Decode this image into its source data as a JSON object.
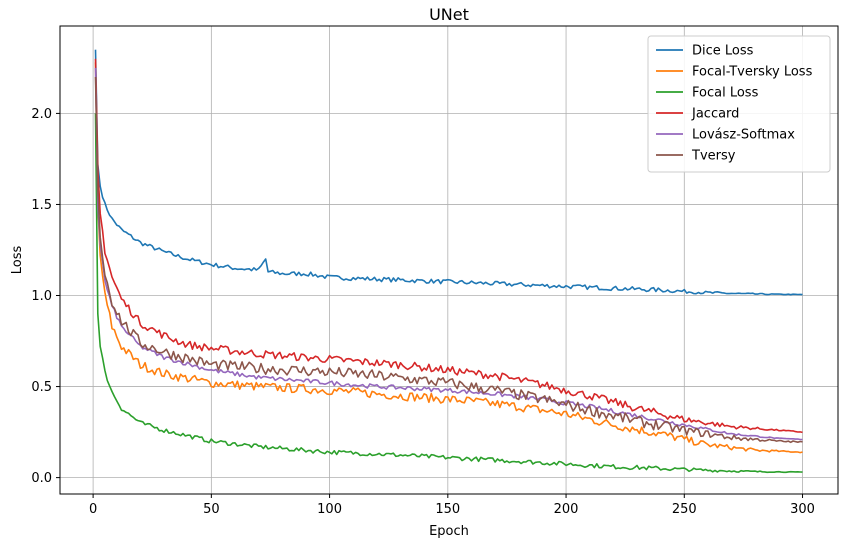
{
  "chart_data": {
    "type": "line",
    "title": "UNet",
    "xlabel": "Epoch",
    "ylabel": "Loss",
    "xlim": [
      -14,
      315
    ],
    "ylim": [
      -0.09,
      2.48
    ],
    "xticks": [
      0,
      50,
      100,
      150,
      200,
      250,
      300
    ],
    "yticks": [
      0.0,
      0.5,
      1.0,
      1.5,
      2.0
    ],
    "grid": true,
    "legend_position": "top-right",
    "series": [
      {
        "name": "Dice Loss",
        "color": "#1f77b4",
        "noise": 0.012,
        "points": [
          [
            1,
            2.35
          ],
          [
            2,
            1.72
          ],
          [
            3,
            1.6
          ],
          [
            5,
            1.5
          ],
          [
            8,
            1.42
          ],
          [
            12,
            1.36
          ],
          [
            20,
            1.29
          ],
          [
            30,
            1.24
          ],
          [
            40,
            1.2
          ],
          [
            50,
            1.17
          ],
          [
            60,
            1.15
          ],
          [
            70,
            1.14
          ],
          [
            73,
            1.2
          ],
          [
            74,
            1.13
          ],
          [
            80,
            1.12
          ],
          [
            90,
            1.12
          ],
          [
            100,
            1.1
          ],
          [
            120,
            1.09
          ],
          [
            140,
            1.08
          ],
          [
            160,
            1.07
          ],
          [
            180,
            1.06
          ],
          [
            200,
            1.05
          ],
          [
            220,
            1.04
          ],
          [
            240,
            1.03
          ],
          [
            260,
            1.015
          ],
          [
            280,
            1.008
          ],
          [
            300,
            1.005
          ]
        ]
      },
      {
        "name": "Focal-Tversky Loss",
        "color": "#ff7f0e",
        "noise": 0.025,
        "points": [
          [
            1,
            2.28
          ],
          [
            2,
            1.5
          ],
          [
            3,
            1.22
          ],
          [
            5,
            1.0
          ],
          [
            8,
            0.83
          ],
          [
            12,
            0.72
          ],
          [
            20,
            0.62
          ],
          [
            30,
            0.57
          ],
          [
            50,
            0.52
          ],
          [
            70,
            0.5
          ],
          [
            100,
            0.48
          ],
          [
            120,
            0.46
          ],
          [
            140,
            0.44
          ],
          [
            160,
            0.42
          ],
          [
            180,
            0.39
          ],
          [
            200,
            0.35
          ],
          [
            220,
            0.29
          ],
          [
            240,
            0.24
          ],
          [
            260,
            0.18
          ],
          [
            280,
            0.15
          ],
          [
            300,
            0.14
          ]
        ]
      },
      {
        "name": "Focal Loss",
        "color": "#2ca02c",
        "noise": 0.012,
        "points": [
          [
            1,
            2.0
          ],
          [
            2,
            0.9
          ],
          [
            3,
            0.72
          ],
          [
            5,
            0.58
          ],
          [
            8,
            0.47
          ],
          [
            12,
            0.38
          ],
          [
            20,
            0.3
          ],
          [
            30,
            0.26
          ],
          [
            50,
            0.2
          ],
          [
            70,
            0.17
          ],
          [
            100,
            0.14
          ],
          [
            120,
            0.13
          ],
          [
            150,
            0.11
          ],
          [
            180,
            0.09
          ],
          [
            200,
            0.075
          ],
          [
            220,
            0.06
          ],
          [
            240,
            0.05
          ],
          [
            260,
            0.04
          ],
          [
            280,
            0.033
          ],
          [
            300,
            0.03
          ]
        ]
      },
      {
        "name": "Jaccard",
        "color": "#d62728",
        "noise": 0.022,
        "points": [
          [
            1,
            2.3
          ],
          [
            2,
            1.7
          ],
          [
            3,
            1.45
          ],
          [
            5,
            1.25
          ],
          [
            8,
            1.1
          ],
          [
            12,
            0.98
          ],
          [
            20,
            0.85
          ],
          [
            30,
            0.78
          ],
          [
            40,
            0.73
          ],
          [
            50,
            0.71
          ],
          [
            70,
            0.68
          ],
          [
            100,
            0.65
          ],
          [
            130,
            0.62
          ],
          [
            150,
            0.59
          ],
          [
            170,
            0.56
          ],
          [
            190,
            0.51
          ],
          [
            210,
            0.45
          ],
          [
            230,
            0.38
          ],
          [
            250,
            0.32
          ],
          [
            270,
            0.28
          ],
          [
            290,
            0.26
          ],
          [
            300,
            0.25
          ]
        ]
      },
      {
        "name": "Lovász-Softmax",
        "color": "#9467bd",
        "noise": 0.012,
        "points": [
          [
            1,
            2.25
          ],
          [
            2,
            1.5
          ],
          [
            3,
            1.28
          ],
          [
            5,
            1.08
          ],
          [
            8,
            0.94
          ],
          [
            12,
            0.83
          ],
          [
            20,
            0.72
          ],
          [
            30,
            0.66
          ],
          [
            50,
            0.59
          ],
          [
            70,
            0.55
          ],
          [
            100,
            0.52
          ],
          [
            120,
            0.5
          ],
          [
            150,
            0.48
          ],
          [
            170,
            0.46
          ],
          [
            190,
            0.43
          ],
          [
            210,
            0.39
          ],
          [
            230,
            0.34
          ],
          [
            250,
            0.29
          ],
          [
            270,
            0.24
          ],
          [
            290,
            0.215
          ],
          [
            300,
            0.21
          ]
        ]
      },
      {
        "name": "Tversy",
        "color": "#8c564b",
        "noise": 0.03,
        "points": [
          [
            1,
            2.2
          ],
          [
            2,
            1.58
          ],
          [
            3,
            1.32
          ],
          [
            5,
            1.12
          ],
          [
            8,
            0.97
          ],
          [
            12,
            0.86
          ],
          [
            20,
            0.74
          ],
          [
            30,
            0.69
          ],
          [
            50,
            0.62
          ],
          [
            70,
            0.6
          ],
          [
            100,
            0.58
          ],
          [
            120,
            0.56
          ],
          [
            150,
            0.52
          ],
          [
            170,
            0.48
          ],
          [
            190,
            0.43
          ],
          [
            210,
            0.37
          ],
          [
            230,
            0.31
          ],
          [
            250,
            0.26
          ],
          [
            270,
            0.22
          ],
          [
            290,
            0.2
          ],
          [
            300,
            0.195
          ]
        ]
      }
    ]
  }
}
